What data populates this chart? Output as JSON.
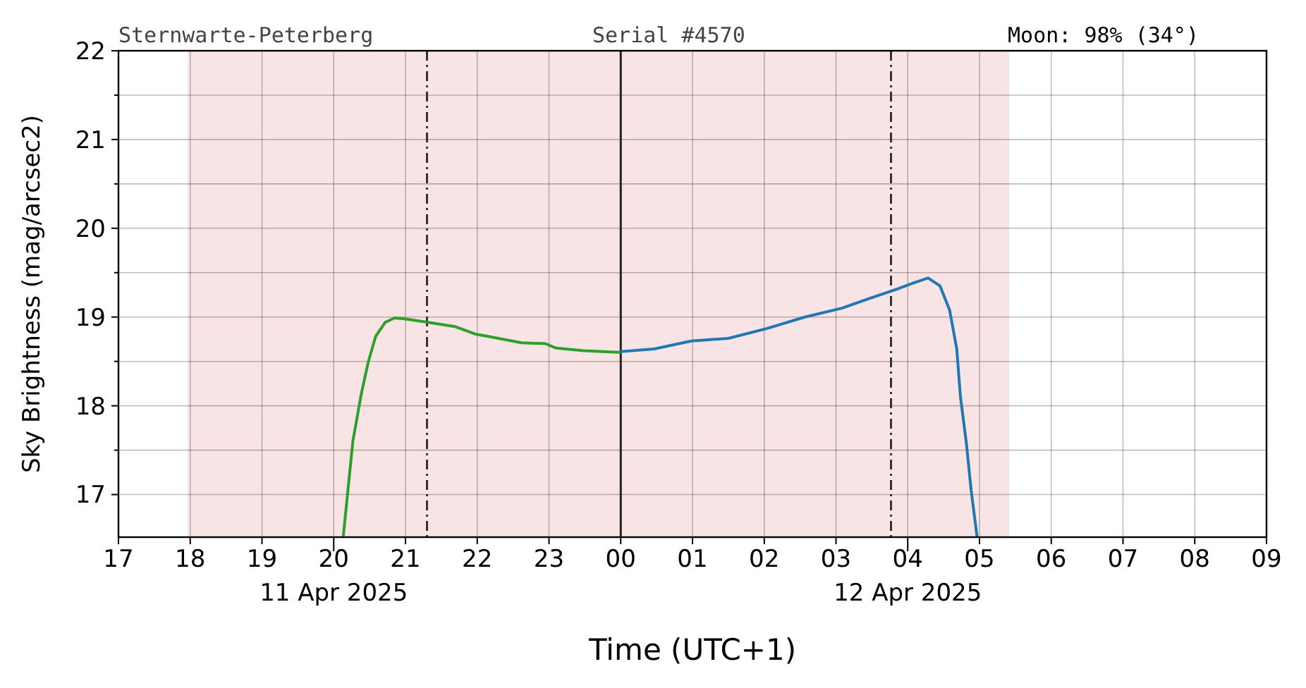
{
  "chart_data": {
    "type": "line",
    "title": "Sternwarte-Peterberg",
    "subtitle": "Serial #4570",
    "annotations": [
      "Moon: 98% (34°)"
    ],
    "xlabel": "Time (UTC+1)",
    "ylabel": "Sky Brightness (mag/arcsec2)",
    "xlim": [
      "2025-04-11T17:00",
      "2025-04-12T09:00"
    ],
    "ylim": [
      16.52,
      22
    ],
    "xticks": [
      {
        "value": "2025-04-11T17:00",
        "label": "17"
      },
      {
        "value": "2025-04-11T18:00",
        "label": "18"
      },
      {
        "value": "2025-04-11T19:00",
        "label": "19"
      },
      {
        "value": "2025-04-11T20:00",
        "label": "20\n11 Apr 2025"
      },
      {
        "value": "2025-04-11T21:00",
        "label": "21"
      },
      {
        "value": "2025-04-11T22:00",
        "label": "22"
      },
      {
        "value": "2025-04-11T23:00",
        "label": "23"
      },
      {
        "value": "2025-04-12T00:00",
        "label": "00"
      },
      {
        "value": "2025-04-12T01:00",
        "label": "01"
      },
      {
        "value": "2025-04-12T02:00",
        "label": "02"
      },
      {
        "value": "2025-04-12T03:00",
        "label": "03"
      },
      {
        "value": "2025-04-12T04:00",
        "label": "04\n12 Apr 2025"
      },
      {
        "value": "2025-04-12T05:00",
        "label": "05"
      },
      {
        "value": "2025-04-12T06:00",
        "label": "06"
      },
      {
        "value": "2025-04-12T07:00",
        "label": "07"
      },
      {
        "value": "2025-04-12T08:00",
        "label": "08"
      },
      {
        "value": "2025-04-12T09:00",
        "label": "09"
      }
    ],
    "yticks": [
      17,
      {
        "value": 17.5,
        "label": null
      },
      18,
      {
        "value": 18.5,
        "label": null
      },
      19,
      {
        "value": 19.5,
        "label": null
      },
      20,
      {
        "value": 20.5,
        "label": null
      },
      21,
      {
        "value": 21.5,
        "label": null
      },
      22
    ],
    "grid": true,
    "marker": "none",
    "series": [
      {
        "color": "#2ca02c",
        "x": [
          "2025-04-11T20:08",
          "2025-04-11T20:16",
          "2025-04-11T20:23",
          "2025-04-11T20:29",
          "2025-04-11T20:35",
          "2025-04-11T20:43",
          "2025-04-11T20:51",
          "2025-04-11T20:59",
          "2025-04-11T21:19",
          "2025-04-11T21:42",
          "2025-04-11T21:58",
          "2025-04-11T22:10",
          "2025-04-11T22:37",
          "2025-04-11T22:57",
          "2025-04-11T23:06",
          "2025-04-11T23:29",
          "2025-04-11T23:45",
          "2025-04-12T00:00"
        ],
        "values": [
          16.53,
          17.6,
          18.13,
          18.5,
          18.78,
          18.94,
          18.99,
          18.98,
          18.94,
          18.89,
          18.81,
          18.78,
          18.71,
          18.7,
          18.65,
          18.62,
          18.61,
          18.6
        ]
      },
      {
        "color": "#1f77b4",
        "x": [
          "2025-04-12T00:00",
          "2025-04-12T00:28",
          "2025-04-12T00:59",
          "2025-04-12T01:30",
          "2025-04-12T02:02",
          "2025-04-12T02:34",
          "2025-04-12T03:05",
          "2025-04-12T03:28",
          "2025-04-12T03:48",
          "2025-04-12T04:04",
          "2025-04-12T04:17",
          "2025-04-12T04:27",
          "2025-04-12T04:35",
          "2025-04-12T04:41",
          "2025-04-12T04:44",
          "2025-04-12T04:49",
          "2025-04-12T04:53",
          "2025-04-12T04:58"
        ],
        "values": [
          18.61,
          18.64,
          18.73,
          18.76,
          18.87,
          19.0,
          19.1,
          19.21,
          19.3,
          19.38,
          19.44,
          19.35,
          19.08,
          18.64,
          18.11,
          17.58,
          17.05,
          16.52
        ]
      }
    ],
    "bands": [
      {
        "axis": "x",
        "from": "2025-04-11T17:58",
        "to": "2025-04-12T05:25",
        "color": "#f8e4e4"
      }
    ],
    "ref_lines": [
      {
        "axis": "x",
        "value": "2025-04-11T21:18",
        "color": "#333333",
        "line_style": "dashed"
      },
      {
        "axis": "x",
        "value": "2025-04-12T00:00",
        "color": "#222222",
        "line_style": "solid"
      },
      {
        "axis": "x",
        "value": "2025-04-12T03:46",
        "color": "#333333",
        "line_style": "dashed"
      }
    ]
  }
}
